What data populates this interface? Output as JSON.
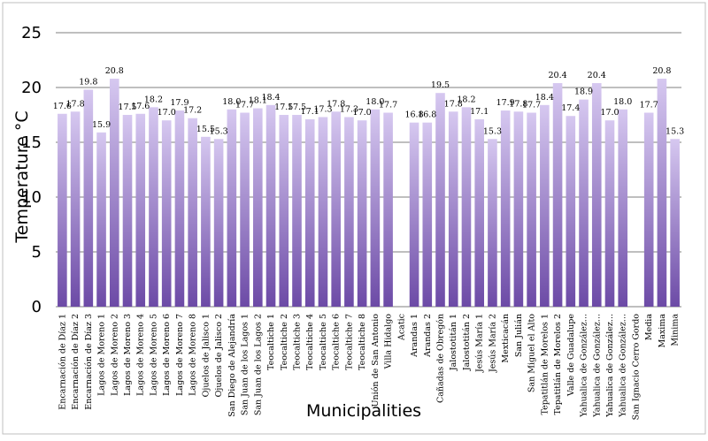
{
  "colors": {
    "bar_top": "#d6c8f0",
    "bar_bottom": "#6c4aa6",
    "grid": "#7f7f7f",
    "border": "#bfbfbf"
  },
  "chart_data": {
    "type": "bar",
    "xlabel": "Municipalities",
    "ylabel": "Temperature °C",
    "ylim": [
      0,
      25
    ],
    "yticks": [
      0,
      5,
      10,
      15,
      20,
      25
    ],
    "grid": true,
    "categories": [
      "Encarnación de Díaz 1",
      "Encarnación de Díaz 2",
      "Encarnación de Díaz 3",
      "Lagos de Moreno 1",
      "Lagos de Moreno 2",
      "Lagos de Moreno 3",
      "Lagos de Moreno 4",
      "Lagos de Moreno 5",
      "Lagos de Moreno 6",
      "Lagos de Moreno 7",
      "Lagos de Moreno 8",
      "Ojuelos de Jalisco 1",
      "Ojuelos de Jalisco 2",
      "San Diego de Alejandría",
      "San Juan de los Lagos 1",
      "San Juan de los Lagos 2",
      "Teocaltiche 1",
      "Teocaltiche 2",
      "Teocaltiche 3",
      "Teocaltiche 4",
      "Teocaltiche 5",
      "Teocaltiche 6",
      "Teocaltiche 7",
      "Teocaltiche 8",
      "Unión de San Antonio",
      "Villa Hidalgo",
      "Acatic",
      "Arandas 1",
      "Arandas 2",
      "Cañadas de Obregón",
      "Jalostotitán 1",
      "Jalostotitán 2",
      "Jesús María 1",
      "Jesús María 2",
      "Mexticacán",
      "San Julián",
      "San Miguel el Alto",
      "Tepatitlán de Morelos 1",
      "Tepatitlán de Morelos 2",
      "Valle de Guadalupe",
      "Yahualica de González...",
      "Yahualica de González...",
      "Yahualica de González...",
      "Yahualica de González...",
      "San Ignacio Cerro Gordo",
      "Media",
      "Maxima",
      "Minima"
    ],
    "values": [
      17.6,
      17.8,
      19.8,
      15.9,
      20.8,
      17.5,
      17.6,
      18.2,
      17.0,
      17.9,
      17.2,
      15.5,
      15.3,
      18.0,
      17.7,
      18.1,
      18.4,
      17.5,
      17.5,
      17.1,
      17.3,
      17.8,
      17.3,
      17.0,
      18.0,
      17.7,
      null,
      16.8,
      16.8,
      19.5,
      17.8,
      18.2,
      17.1,
      15.3,
      17.9,
      17.8,
      17.7,
      18.4,
      20.4,
      17.4,
      18.9,
      20.4,
      17.0,
      18.0,
      null,
      17.7,
      20.8,
      15.3
    ],
    "data_labels": [
      "17.6",
      "17.8",
      "19.8",
      "15.9",
      "20.8",
      "17.5",
      "17.6",
      "18.2",
      "17.0",
      "17.9",
      "17.2",
      "15.5",
      "15.3",
      "18.0",
      "17.7",
      "18.1",
      "18.4",
      "17.5",
      "17.5",
      "17.1",
      "17.3",
      "17.8",
      "17.3",
      "17.0",
      "18.0",
      "17.7",
      "",
      "16.8",
      "16.8",
      "19.5",
      "17.8",
      "18.2",
      "17.1",
      "15.3",
      "17.9",
      "17.8",
      "17.7",
      "18.4",
      "20.4",
      "17.4",
      "18.9",
      "20.4",
      "17.0",
      "18.0",
      "",
      "17.7",
      "20.8",
      "15.3"
    ]
  }
}
